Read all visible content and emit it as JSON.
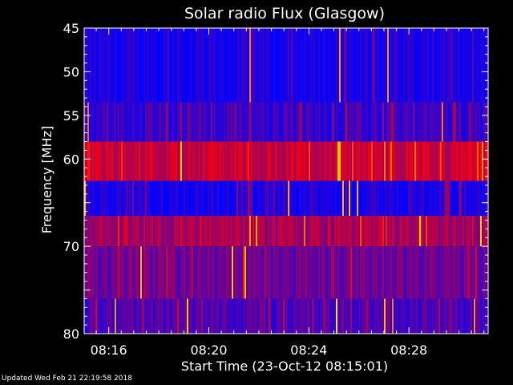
{
  "chart_data": {
    "type": "heatmap",
    "title": "Solar radio Flux (Glasgow)",
    "xlabel": "Start Time (23-Oct-12 08:15:01)",
    "ylabel": "Frequency [MHz]",
    "x_start": "08:15:01",
    "x_end": "08:31:10",
    "x_ticks": [
      "08:16",
      "08:20",
      "08:24",
      "08:28"
    ],
    "ylim": [
      45,
      80
    ],
    "y_axis_direction": "increasing downward",
    "y_ticks": [
      "45",
      "50",
      "55",
      "60",
      "70",
      "80"
    ],
    "colormap": [
      "#0000ff",
      "#ff0000",
      "#ffff00"
    ],
    "frequency_bands": [
      {
        "range_mhz": [
          45.0,
          53.5
        ],
        "mean_intensity": 0.05
      },
      {
        "range_mhz": [
          53.5,
          58.0
        ],
        "mean_intensity": 0.15
      },
      {
        "range_mhz": [
          58.0,
          62.5
        ],
        "mean_intensity": 0.55
      },
      {
        "range_mhz": [
          62.5,
          66.5
        ],
        "mean_intensity": 0.06
      },
      {
        "range_mhz": [
          66.5,
          70.0
        ],
        "mean_intensity": 0.45
      },
      {
        "range_mhz": [
          70.0,
          76.0
        ],
        "mean_intensity": 0.3
      },
      {
        "range_mhz": [
          76.0,
          80.0
        ],
        "mean_intensity": 0.2
      }
    ]
  },
  "footer": "Updated Wed Feb 21 22:19:58 2018"
}
